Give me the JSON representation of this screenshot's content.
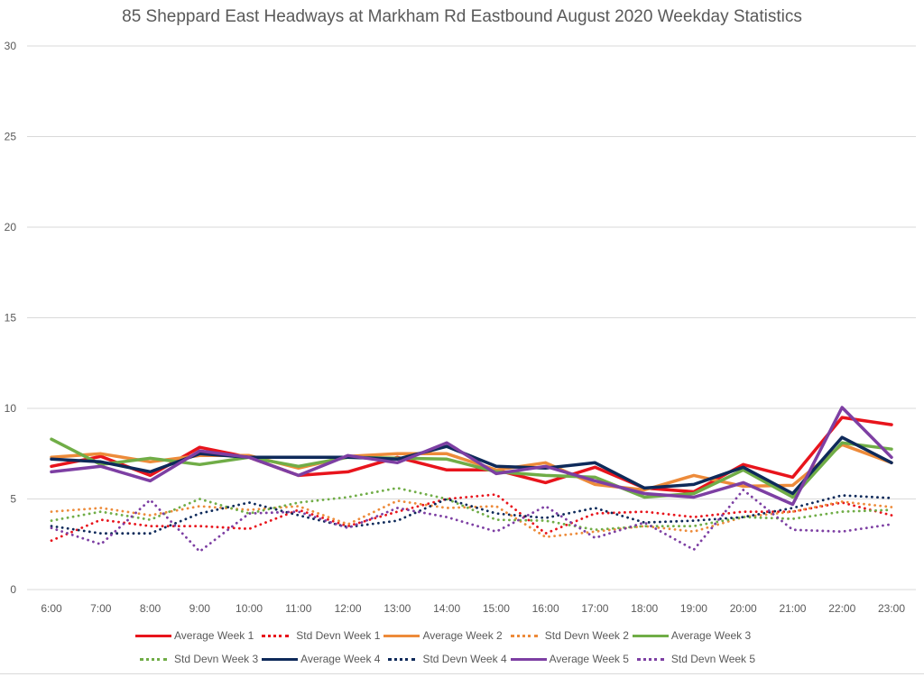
{
  "chart_data": {
    "type": "line",
    "title": "85 Sheppard East Headways at Markham Rd Eastbound August 2020 Weekday Statistics",
    "xlabel": "",
    "ylabel": "",
    "ylim": [
      0,
      30
    ],
    "yticks": [
      "0",
      "5",
      "10",
      "15",
      "20",
      "25",
      "30"
    ],
    "grid": true,
    "legend_position": "bottom",
    "categories": [
      "6:00",
      "7:00",
      "8:00",
      "9:00",
      "10:00",
      "11:00",
      "12:00",
      "13:00",
      "14:00",
      "15:00",
      "16:00",
      "17:00",
      "18:00",
      "19:00",
      "20:00",
      "21:00",
      "22:00",
      "23:00"
    ],
    "series": [
      {
        "name": "Average Week 1",
        "style": "solid",
        "color": "#e8141c",
        "values": [
          6.8,
          7.35,
          6.3,
          7.85,
          7.3,
          6.3,
          6.5,
          7.3,
          6.6,
          6.6,
          5.9,
          6.75,
          5.6,
          5.4,
          6.9,
          6.2,
          9.5,
          9.1
        ]
      },
      {
        "name": "Std Devn Week 1",
        "style": "dotted",
        "color": "#e8141c",
        "values": [
          2.7,
          3.85,
          3.5,
          3.5,
          3.35,
          4.4,
          3.5,
          4.3,
          5.0,
          5.25,
          3.1,
          4.2,
          4.3,
          4.0,
          4.3,
          4.3,
          4.8,
          4.1
        ]
      },
      {
        "name": "Average Week 2",
        "style": "solid",
        "color": "#ed8b3a",
        "values": [
          7.3,
          7.5,
          7.05,
          7.4,
          7.4,
          6.7,
          7.35,
          7.5,
          7.5,
          6.6,
          7.0,
          5.8,
          5.5,
          6.3,
          5.7,
          5.75,
          8.0,
          7.0
        ]
      },
      {
        "name": "Std Devn Week 2",
        "style": "dotted",
        "color": "#ed8b3a",
        "values": [
          4.3,
          4.5,
          4.1,
          4.6,
          4.4,
          4.6,
          3.6,
          4.9,
          4.5,
          4.6,
          2.9,
          3.2,
          3.5,
          3.2,
          4.0,
          4.3,
          4.85,
          4.55
        ]
      },
      {
        "name": "Average Week 3",
        "style": "solid",
        "color": "#70ad47",
        "values": [
          8.3,
          6.9,
          7.25,
          6.9,
          7.3,
          6.8,
          7.3,
          7.25,
          7.2,
          6.5,
          6.3,
          6.2,
          5.1,
          5.3,
          6.6,
          5.1,
          8.1,
          7.75
        ]
      },
      {
        "name": "Std Devn Week 3",
        "style": "dotted",
        "color": "#70ad47",
        "values": [
          3.8,
          4.3,
          3.85,
          5.0,
          4.2,
          4.8,
          5.1,
          5.6,
          5.0,
          3.85,
          3.8,
          3.3,
          3.5,
          3.5,
          4.0,
          3.9,
          4.3,
          4.4
        ]
      },
      {
        "name": "Average Week 4",
        "style": "solid",
        "color": "#0e2a5a",
        "values": [
          7.2,
          7.05,
          6.5,
          7.5,
          7.3,
          7.3,
          7.3,
          7.2,
          7.9,
          6.8,
          6.7,
          7.0,
          5.6,
          5.8,
          6.75,
          5.3,
          8.4,
          7.0
        ]
      },
      {
        "name": "Std Devn Week 4",
        "style": "dotted",
        "color": "#0e2a5a",
        "values": [
          3.5,
          3.1,
          3.1,
          4.2,
          4.8,
          4.1,
          3.45,
          3.8,
          5.0,
          4.2,
          3.95,
          4.5,
          3.7,
          3.8,
          4.0,
          4.5,
          5.2,
          5.05
        ]
      },
      {
        "name": "Average Week 5",
        "style": "solid",
        "color": "#7d3fa3",
        "values": [
          6.5,
          6.8,
          6.0,
          7.65,
          7.3,
          6.3,
          7.4,
          7.0,
          8.1,
          6.4,
          6.8,
          6.0,
          5.3,
          5.1,
          5.9,
          4.7,
          10.05,
          7.3
        ]
      },
      {
        "name": "Std Devn Week 5",
        "style": "dotted",
        "color": "#7d3fa3",
        "values": [
          3.4,
          2.5,
          4.95,
          2.1,
          4.2,
          4.3,
          3.4,
          4.5,
          4.0,
          3.2,
          4.6,
          2.85,
          3.7,
          2.2,
          5.5,
          3.3,
          3.2,
          3.6
        ]
      }
    ]
  }
}
